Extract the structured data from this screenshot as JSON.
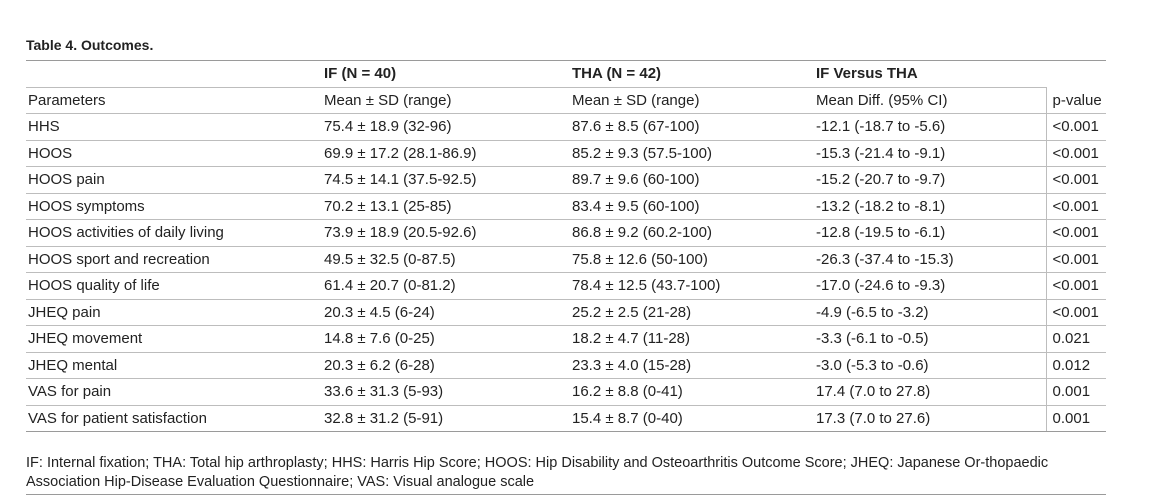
{
  "caption": "Table 4.  Outcomes.",
  "header": {
    "group_if": "IF (N = 40)",
    "group_tha": "THA (N = 42)",
    "group_diff": "IF Versus THA",
    "col_param": "Parameters",
    "col_if": "Mean ± SD (range)",
    "col_tha": "Mean ± SD (range)",
    "col_diff": "Mean Diff. (95% CI)",
    "col_p": "p-value"
  },
  "rows": [
    {
      "param": "HHS",
      "if": "75.4 ± 18.9 (32-96)",
      "tha": "87.6 ± 8.5 (67-100)",
      "diff": "-12.1 (-18.7 to -5.6)",
      "p": "<0.001"
    },
    {
      "param": "HOOS",
      "if": "69.9 ± 17.2 (28.1-86.9)",
      "tha": "85.2 ± 9.3 (57.5-100)",
      "diff": "-15.3 (-21.4 to -9.1)",
      "p": "<0.001"
    },
    {
      "param": "HOOS pain",
      "if": "74.5 ± 14.1 (37.5-92.5)",
      "tha": "89.7 ± 9.6 (60-100)",
      "diff": "-15.2 (-20.7 to -9.7)",
      "p": "<0.001"
    },
    {
      "param": "HOOS symptoms",
      "if": "70.2 ± 13.1 (25-85)",
      "tha": "83.4 ± 9.5 (60-100)",
      "diff": "-13.2 (-18.2 to -8.1)",
      "p": "<0.001"
    },
    {
      "param": "HOOS activities of daily living",
      "if": "73.9 ± 18.9 (20.5-92.6)",
      "tha": "86.8 ± 9.2 (60.2-100)",
      "diff": "-12.8 (-19.5 to -6.1)",
      "p": "<0.001"
    },
    {
      "param": "HOOS sport and recreation",
      "if": "49.5 ± 32.5 (0-87.5)",
      "tha": "75.8 ± 12.6 (50-100)",
      "diff": "-26.3 (-37.4 to -15.3)",
      "p": "<0.001"
    },
    {
      "param": "HOOS quality of life",
      "if": "61.4 ± 20.7 (0-81.2)",
      "tha": "78.4 ± 12.5 (43.7-100)",
      "diff": "-17.0 (-24.6 to -9.3)",
      "p": "<0.001"
    },
    {
      "param": "JHEQ pain",
      "if": "20.3 ± 4.5 (6-24)",
      "tha": "25.2 ± 2.5 (21-28)",
      "diff": "-4.9 (-6.5 to -3.2)",
      "p": "<0.001"
    },
    {
      "param": "JHEQ movement",
      "if": "14.8 ± 7.6 (0-25)",
      "tha": "18.2 ± 4.7 (11-28)",
      "diff": "-3.3 (-6.1 to -0.5)",
      "p": "0.021"
    },
    {
      "param": "JHEQ mental",
      "if": "20.3 ± 6.2 (6-28)",
      "tha": "23.3 ± 4.0 (15-28)",
      "diff": "-3.0 (-5.3 to -0.6)",
      "p": "0.012"
    },
    {
      "param": "VAS for pain",
      "if": "33.6 ± 31.3 (5-93)",
      "tha": "16.2 ± 8.8 (0-41)",
      "diff": "17.4 (7.0 to 27.8)",
      "p": "0.001"
    },
    {
      "param": "VAS for patient satisfaction",
      "if": "32.8 ± 31.2 (5-91)",
      "tha": "15.4 ± 8.7 (0-40)",
      "diff": "17.3 (7.0 to 27.6)",
      "p": "0.001"
    }
  ],
  "footnote": "IF: Internal fixation; THA: Total hip arthroplasty; HHS: Harris Hip Score; HOOS: Hip Disability and Osteoarthritis Outcome Score; JHEQ: Japanese Or-thopaedic Association Hip-Disease Evaluation Questionnaire; VAS: Visual analogue scale"
}
